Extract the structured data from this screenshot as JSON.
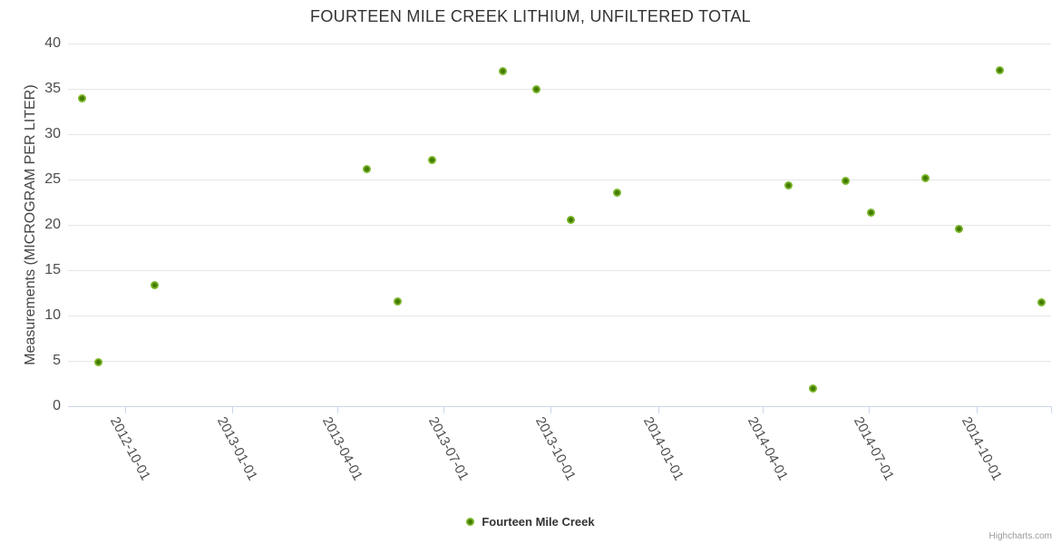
{
  "title": "FOURTEEN MILE CREEK LITHIUM, UNFILTERED TOTAL",
  "y_axis": {
    "title": "Measurements (MICROGRAM PER LITER)",
    "min": 0,
    "max": 40,
    "ticks": [
      0,
      5,
      10,
      15,
      20,
      25,
      30,
      35,
      40
    ]
  },
  "x_axis": {
    "tick_labels": [
      "2012-10-01",
      "2013-01-01",
      "2013-04-01",
      "2013-07-01",
      "2013-10-01",
      "2014-01-01",
      "2014-04-01",
      "2014-07-01",
      "2014-10-01"
    ],
    "end_tick": true
  },
  "legend": {
    "label": "Fourteen Mile Creek"
  },
  "credits": {
    "label": "Highcharts.com"
  },
  "colors": {
    "marker_outer": "#7cb82e",
    "marker_inner": "#447a00",
    "gridline": "#e6e6e6",
    "axis_line": "#ccd6eb",
    "title_text": "#333333",
    "axis_title_text": "#444444",
    "axis_label_text": "#4d4d4d",
    "credits_text": "#999999"
  },
  "chart_data": {
    "type": "scatter",
    "title": "FOURTEEN MILE CREEK LITHIUM, UNFILTERED TOTAL",
    "xlabel": "",
    "ylabel": "Measurements (MICROGRAM PER LITER)",
    "ylim": [
      0,
      40
    ],
    "xlim": [
      "2012-08-13",
      "2014-12-04"
    ],
    "x_tick_labels": [
      "2012-10-01",
      "2013-01-01",
      "2013-04-01",
      "2013-07-01",
      "2013-10-01",
      "2014-01-01",
      "2014-04-01",
      "2014-07-01",
      "2014-10-01"
    ],
    "grid": "horizontal",
    "legend_position": "bottom",
    "series": [
      {
        "name": "Fourteen Mile Creek",
        "points": [
          {
            "date": "2012-08-25",
            "value": 34.0
          },
          {
            "date": "2012-09-08",
            "value": 4.9
          },
          {
            "date": "2012-10-26",
            "value": 13.4
          },
          {
            "date": "2013-04-26",
            "value": 26.2
          },
          {
            "date": "2013-05-23",
            "value": 11.6
          },
          {
            "date": "2013-06-21",
            "value": 27.2
          },
          {
            "date": "2013-08-21",
            "value": 37.0
          },
          {
            "date": "2013-09-19",
            "value": 35.0
          },
          {
            "date": "2013-10-18",
            "value": 20.6
          },
          {
            "date": "2013-11-27",
            "value": 23.6
          },
          {
            "date": "2014-04-23",
            "value": 24.4
          },
          {
            "date": "2014-05-14",
            "value": 2.0
          },
          {
            "date": "2014-06-11",
            "value": 24.9
          },
          {
            "date": "2014-07-03",
            "value": 21.4
          },
          {
            "date": "2014-08-18",
            "value": 25.2
          },
          {
            "date": "2014-09-16",
            "value": 19.6
          },
          {
            "date": "2014-10-21",
            "value": 37.1
          },
          {
            "date": "2014-11-26",
            "value": 11.5
          }
        ]
      }
    ]
  }
}
